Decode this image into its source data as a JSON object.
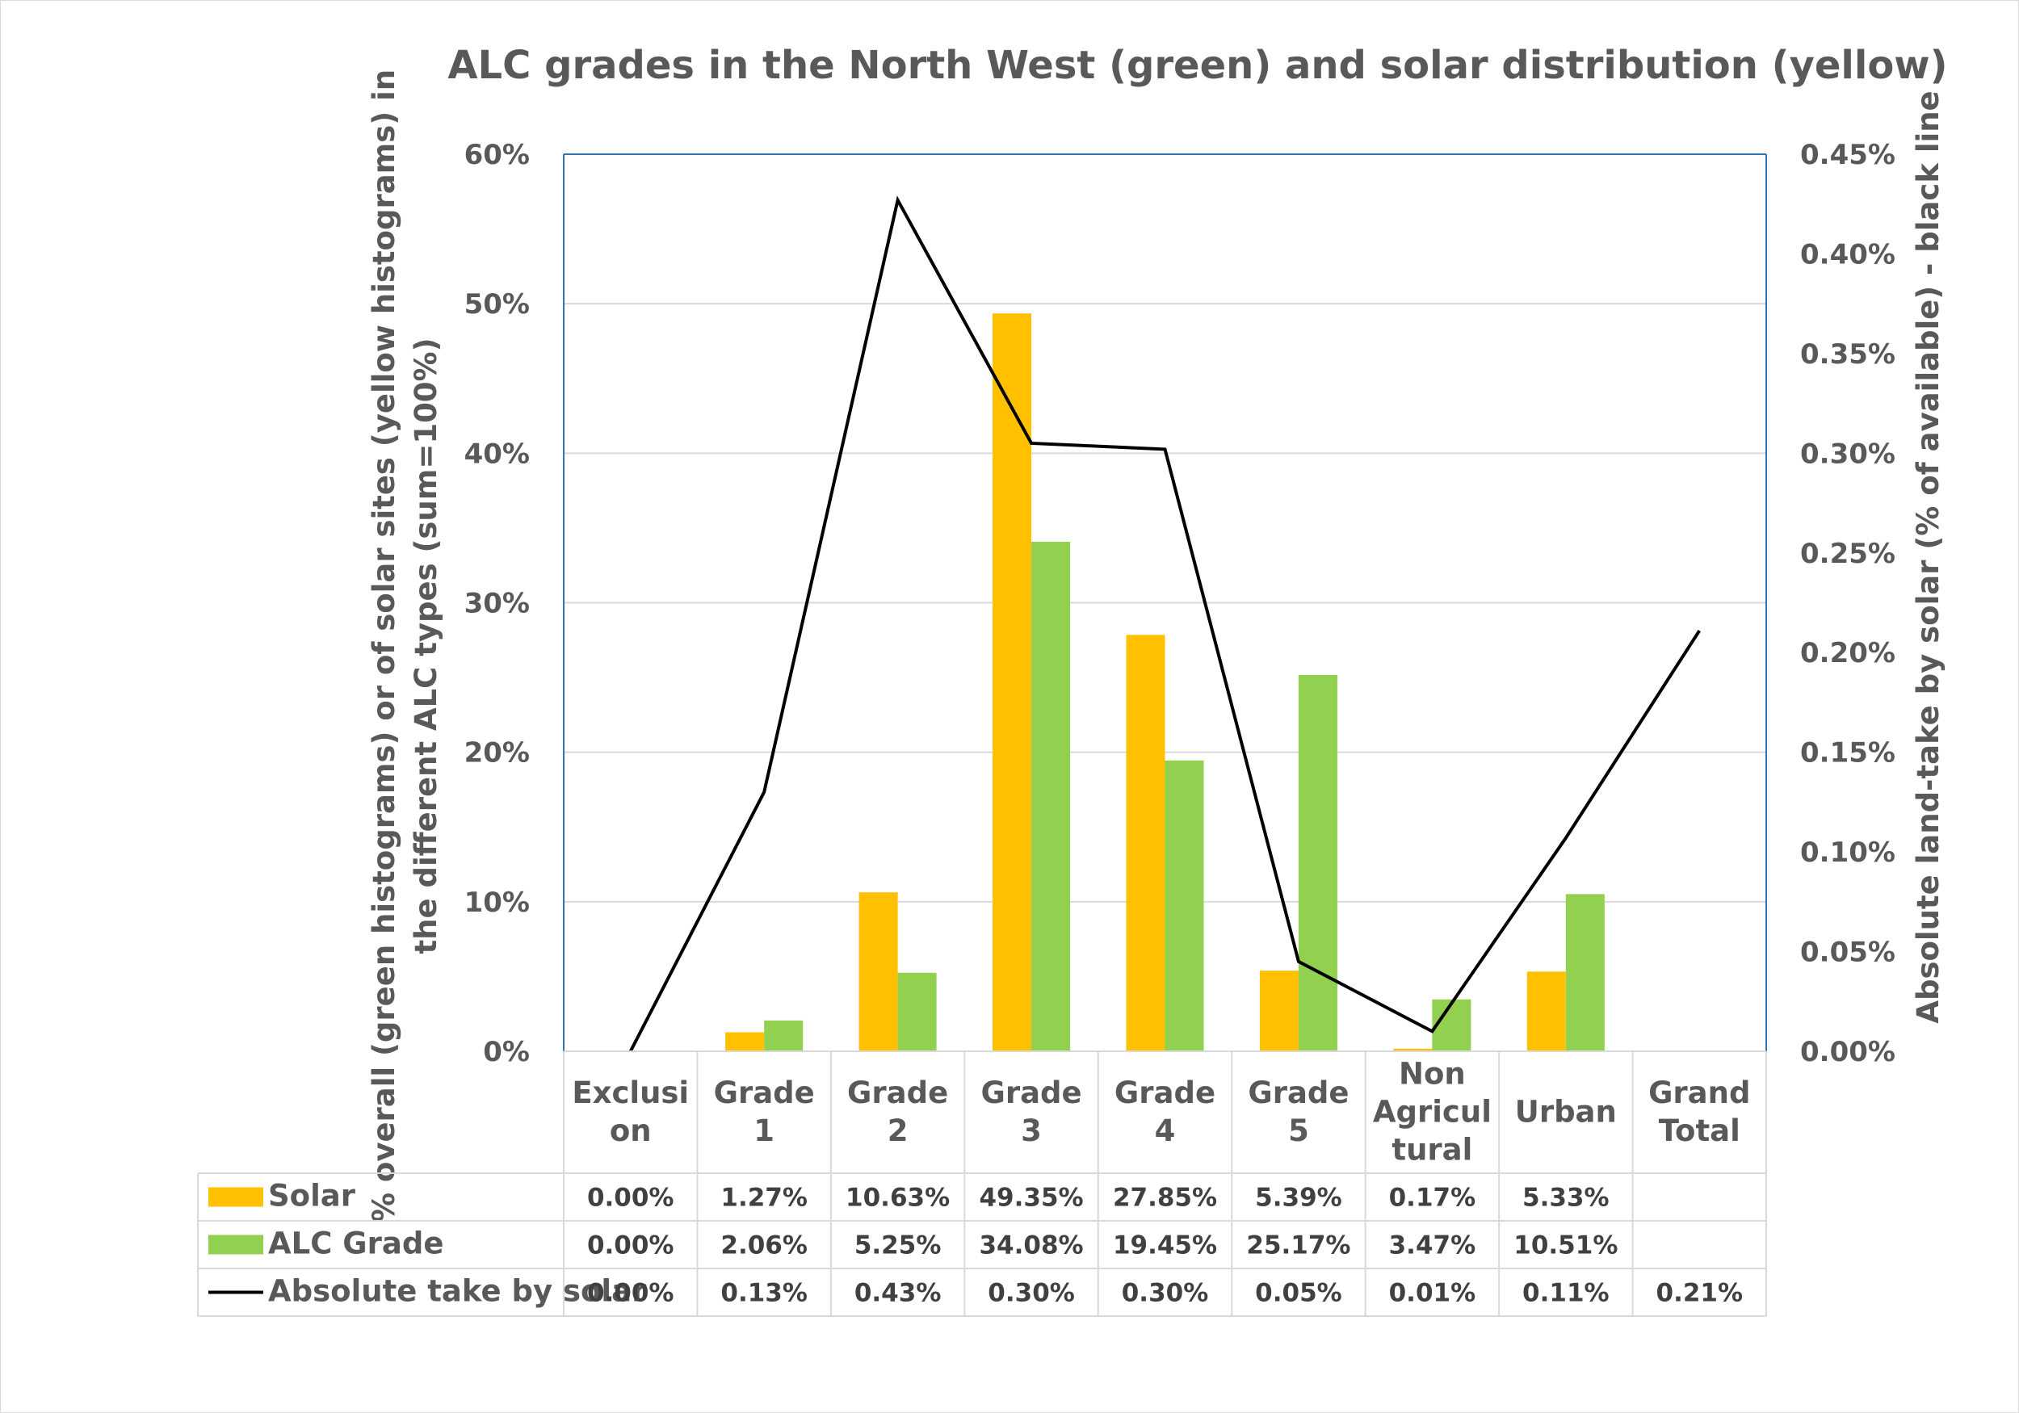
{
  "chart_data": {
    "type": "bar",
    "title": "ALC grades in the North West (green) and solar distribution (yellow)",
    "categories": [
      [
        "Exclusi",
        "on"
      ],
      [
        "Grade",
        "1"
      ],
      [
        "Grade",
        "2"
      ],
      [
        "Grade",
        "3"
      ],
      [
        "Grade",
        "4"
      ],
      [
        "Grade",
        "5"
      ],
      [
        "Non",
        "Agricul",
        "tural"
      ],
      [
        "Urban"
      ],
      [
        "Grand",
        "Total"
      ]
    ],
    "ylabel_left": [
      "% overall (green histograms) or of solar sites (yellow histograms) in",
      "the different ALC types (sum=100%)"
    ],
    "ylabel_right": "Absolute land-take by solar (% of available) - black line",
    "ylim_left": [
      0,
      60
    ],
    "ylim_right": [
      0,
      0.45
    ],
    "yticks_left": [
      "0%",
      "10%",
      "20%",
      "30%",
      "40%",
      "50%",
      "60%"
    ],
    "yticks_right": [
      "0.00%",
      "0.05%",
      "0.10%",
      "0.15%",
      "0.20%",
      "0.25%",
      "0.30%",
      "0.35%",
      "0.40%",
      "0.45%"
    ],
    "grid": true,
    "series": [
      {
        "name": "Solar",
        "kind": "bar",
        "axis": "left",
        "color": "#FFC000",
        "values": [
          0.0,
          1.27,
          10.63,
          49.35,
          27.85,
          5.39,
          0.17,
          5.33,
          null
        ],
        "labels": [
          "0.00%",
          "1.27%",
          "10.63%",
          "49.35%",
          "27.85%",
          "5.39%",
          "0.17%",
          "5.33%",
          ""
        ]
      },
      {
        "name": "ALC Grade",
        "kind": "bar",
        "axis": "left",
        "color": "#92D050",
        "values": [
          0.0,
          2.06,
          5.25,
          34.08,
          19.45,
          25.17,
          3.47,
          10.51,
          null
        ],
        "labels": [
          "0.00%",
          "2.06%",
          "5.25%",
          "34.08%",
          "19.45%",
          "25.17%",
          "3.47%",
          "10.51%",
          ""
        ]
      },
      {
        "name": "Absolute take by solar",
        "kind": "line",
        "axis": "right",
        "color": "#000000",
        "values": [
          0.0,
          0.13,
          0.427,
          0.305,
          0.302,
          0.045,
          0.01,
          0.107,
          0.211
        ],
        "labels": [
          "0.00%",
          "0.13%",
          "0.43%",
          "0.30%",
          "0.30%",
          "0.05%",
          "0.01%",
          "0.11%",
          "0.21%"
        ]
      }
    ]
  },
  "colors": {
    "grid": "#d9d9d9",
    "plot_border": "#2E75B6",
    "text": "#595959"
  }
}
